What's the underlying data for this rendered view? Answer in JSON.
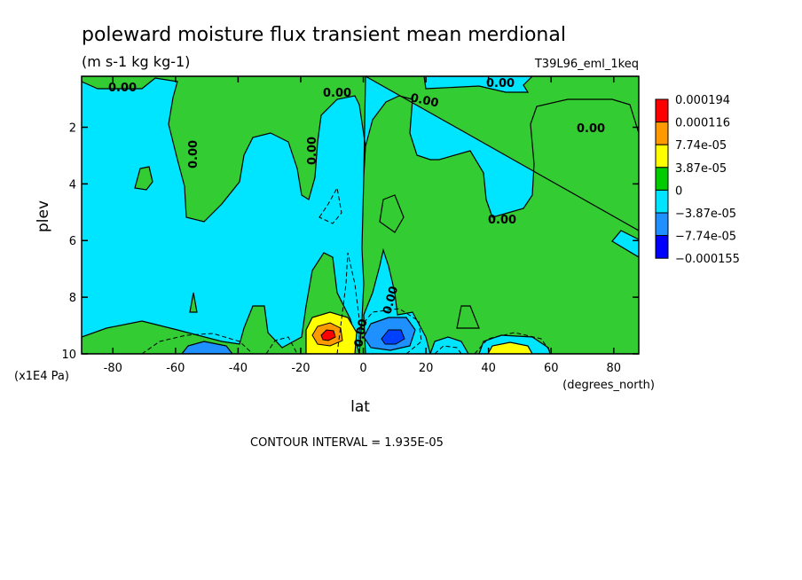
{
  "chart_data": {
    "type": "heatmap",
    "title": "poleward moisture flux transient mean merdional",
    "units": "(m s-1 kg kg-1)",
    "run_label": "T39L96_eml_1keq",
    "xlabel": "lat",
    "x_units": "(degrees_north)",
    "ylabel": "plev",
    "y_units": "(x1E4 Pa)",
    "xlim": [
      -90,
      88
    ],
    "ylim": [
      10,
      0.2
    ],
    "x_ticks": [
      "-80",
      "-60",
      "-40",
      "-20",
      "0",
      "20",
      "40",
      "60",
      "80"
    ],
    "x_tick_values": [
      -80,
      -60,
      -40,
      -20,
      0,
      20,
      40,
      60,
      80
    ],
    "y_ticks": [
      "2",
      "4",
      "6",
      "8",
      "10"
    ],
    "y_tick_values": [
      2,
      4,
      6,
      8,
      10
    ],
    "contour_interval_text": "CONTOUR INTERVAL = 1.935E-05",
    "contour_labels": [
      "0.00",
      "0.00",
      "0.00",
      "0.00",
      "0.00",
      "0.00",
      "0.00",
      "0.00",
      "0.00",
      "0.00"
    ],
    "legend": {
      "placement": "right",
      "levels": [
        "0.000194",
        "0.000116",
        "7.74e-05",
        "3.87e-05",
        "0",
        "−3.87e-05",
        "−7.74e-05",
        "−0.000155"
      ],
      "colors": [
        "#ff0000",
        "#ff9900",
        "#ffff00",
        "#00cc00",
        "#00e5ff",
        "#1e90ff",
        "#0000ff"
      ]
    },
    "colors": {
      "positive_small": "#33cc33",
      "negative_small": "#00e5ff",
      "negative_mid": "#1e90ff",
      "negative_strong": "#0040ff",
      "positive_mid": "#ffff00",
      "positive_high": "#ff9900",
      "positive_peak": "#ff0000"
    },
    "regions": [
      {
        "sign": "positive",
        "level": 1,
        "lat": [
          -88,
          -78
        ],
        "plev": [
          0.2,
          0.8
        ]
      },
      {
        "sign": "positive",
        "level": 1,
        "lat": [
          -60,
          -20
        ],
        "plev": [
          0.2,
          4.5
        ]
      },
      {
        "sign": "positive",
        "level": 1,
        "lat": [
          -8,
          88
        ],
        "plev": [
          0.2,
          10
        ]
      },
      {
        "sign": "negative",
        "level": 1,
        "lat": [
          -90,
          2
        ],
        "plev": [
          0.5,
          10
        ]
      },
      {
        "sign": "negative",
        "level": 1,
        "lat": [
          26,
          62
        ],
        "plev": [
          1.2,
          7
        ]
      },
      {
        "sign": "negative",
        "level": 2,
        "lat": [
          4,
          16
        ],
        "plev": [
          8.6,
          10
        ]
      },
      {
        "sign": "negative",
        "level": 2,
        "lat": [
          -56,
          -46
        ],
        "plev": [
          9.5,
          10
        ]
      },
      {
        "sign": "positive",
        "level": 2,
        "lat": [
          -16,
          -6
        ],
        "plev": [
          8.8,
          10
        ]
      },
      {
        "sign": "positive",
        "level": 3,
        "lat": [
          -14,
          -8
        ],
        "plev": [
          9.0,
          9.6
        ]
      },
      {
        "sign": "positive",
        "level": 4,
        "lat": [
          -13,
          -10
        ],
        "plev": [
          9.2,
          9.4
        ]
      },
      {
        "sign": "positive",
        "level": 2,
        "lat": [
          40,
          52
        ],
        "plev": [
          9.7,
          10
        ]
      }
    ]
  }
}
